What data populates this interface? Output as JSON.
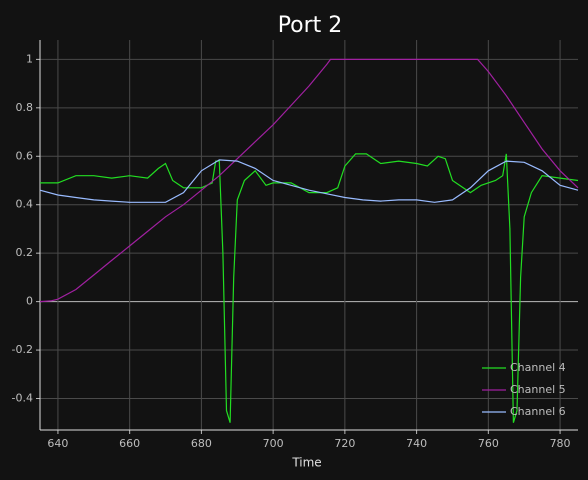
{
  "chart_data": {
    "type": "line",
    "title": "Port 2",
    "x_label": "Time",
    "xlim": [
      635,
      785
    ],
    "ylim": [
      -0.53,
      1.08
    ],
    "xticks": [
      640,
      660,
      680,
      700,
      720,
      740,
      760,
      780
    ],
    "yticks": [
      -0.4,
      -0.2,
      0,
      0.2,
      0.4,
      0.6,
      0.8,
      1
    ],
    "grid": true,
    "legend": "lower right",
    "series": [
      {
        "name": "Channel 4",
        "color": "#22dd22",
        "x": [
          635,
          640,
          645,
          650,
          655,
          660,
          665,
          668,
          670,
          672,
          675,
          680,
          683,
          684,
          685,
          686,
          687,
          688,
          689,
          690,
          692,
          695,
          698,
          700,
          705,
          710,
          715,
          718,
          720,
          723,
          726,
          730,
          735,
          740,
          743,
          746,
          748,
          750,
          755,
          758,
          762,
          764,
          765,
          766,
          767,
          768,
          769,
          770,
          772,
          775,
          780,
          785
        ],
        "values": [
          0.49,
          0.49,
          0.52,
          0.52,
          0.51,
          0.52,
          0.51,
          0.55,
          0.57,
          0.5,
          0.47,
          0.47,
          0.49,
          0.58,
          0.58,
          0.2,
          -0.45,
          -0.5,
          0.1,
          0.42,
          0.5,
          0.54,
          0.48,
          0.49,
          0.49,
          0.45,
          0.45,
          0.47,
          0.56,
          0.61,
          0.61,
          0.57,
          0.58,
          0.57,
          0.56,
          0.6,
          0.59,
          0.5,
          0.45,
          0.48,
          0.5,
          0.52,
          0.61,
          0.3,
          -0.5,
          -0.45,
          0.1,
          0.35,
          0.45,
          0.52,
          0.51,
          0.5
        ]
      },
      {
        "name": "Channel 5",
        "color": "#a020a0",
        "x": [
          635,
          638,
          640,
          645,
          650,
          655,
          660,
          665,
          670,
          675,
          680,
          685,
          690,
          695,
          700,
          705,
          710,
          715,
          716,
          757,
          760,
          765,
          770,
          775,
          780,
          785
        ],
        "values": [
          0,
          0.003,
          0.01,
          0.05,
          0.11,
          0.17,
          0.23,
          0.29,
          0.35,
          0.4,
          0.46,
          0.52,
          0.59,
          0.66,
          0.73,
          0.81,
          0.89,
          0.98,
          1,
          1,
          0.95,
          0.85,
          0.74,
          0.63,
          0.54,
          0.47
        ]
      },
      {
        "name": "Channel 6",
        "color": "#99bbff",
        "x": [
          635,
          640,
          645,
          650,
          655,
          660,
          665,
          670,
          675,
          680,
          685,
          690,
          695,
          700,
          705,
          710,
          715,
          720,
          725,
          730,
          735,
          740,
          745,
          750,
          755,
          760,
          765,
          770,
          775,
          780,
          785
        ],
        "values": [
          0.46,
          0.44,
          0.43,
          0.42,
          0.415,
          0.41,
          0.41,
          0.41,
          0.45,
          0.54,
          0.585,
          0.58,
          0.55,
          0.5,
          0.48,
          0.46,
          0.445,
          0.43,
          0.42,
          0.415,
          0.42,
          0.42,
          0.41,
          0.42,
          0.47,
          0.54,
          0.58,
          0.575,
          0.54,
          0.48,
          0.46
        ]
      }
    ]
  }
}
